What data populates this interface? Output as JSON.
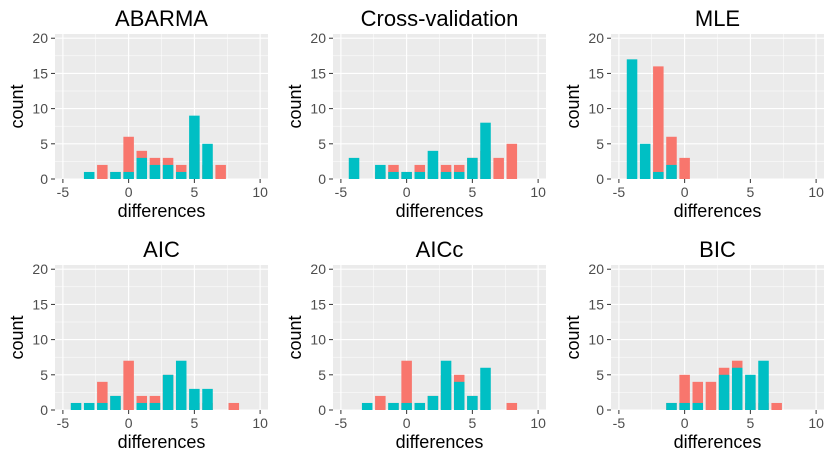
{
  "colors": {
    "red": "#F8766D",
    "teal": "#00BFC4",
    "panel": "#EBEBEB"
  },
  "chart_data": [
    {
      "type": "bar",
      "title": "ABARMA",
      "xlabel": "differences",
      "ylabel": "count",
      "xlim": [
        -5.6,
        10.6
      ],
      "ylim": [
        0,
        20.6
      ],
      "xticks": [
        -5,
        0,
        5,
        10
      ],
      "yticks": [
        0,
        5,
        10,
        15,
        20
      ],
      "grid": true,
      "bar_width": 0.8,
      "series": [
        {
          "color": "red",
          "x": [
            -2,
            -1,
            0,
            1,
            2,
            3,
            4,
            5,
            6,
            7
          ],
          "values": [
            2,
            1,
            6,
            4,
            3,
            3,
            2,
            5,
            2,
            2
          ]
        },
        {
          "color": "teal",
          "x": [
            -3,
            -1,
            0,
            1,
            2,
            3,
            4,
            5,
            6
          ],
          "values": [
            1,
            1,
            1,
            3,
            2,
            2,
            1,
            9,
            5
          ]
        }
      ]
    },
    {
      "type": "bar",
      "title": "Cross-validation",
      "xlabel": "differences",
      "ylabel": "count",
      "xlim": [
        -5.6,
        10.6
      ],
      "ylim": [
        0,
        20.6
      ],
      "xticks": [
        -5,
        0,
        5,
        10
      ],
      "yticks": [
        0,
        5,
        10,
        15,
        20
      ],
      "grid": true,
      "bar_width": 0.8,
      "series": [
        {
          "color": "red",
          "x": [
            -2,
            -1,
            0,
            1,
            2,
            3,
            4,
            5,
            6,
            7,
            8
          ],
          "values": [
            1,
            2,
            1,
            2,
            1,
            2,
            2,
            3,
            4,
            3,
            5
          ]
        },
        {
          "color": "teal",
          "x": [
            -4,
            -2,
            -1,
            0,
            1,
            2,
            3,
            4,
            5,
            6
          ],
          "values": [
            3,
            2,
            1,
            1,
            1,
            4,
            1,
            1,
            3,
            8
          ]
        }
      ]
    },
    {
      "type": "bar",
      "title": "MLE",
      "xlabel": "differences",
      "ylabel": "count",
      "xlim": [
        -5.6,
        10.6
      ],
      "ylim": [
        0,
        20.6
      ],
      "xticks": [
        -5,
        0,
        5,
        10
      ],
      "yticks": [
        0,
        5,
        10,
        15,
        20
      ],
      "grid": true,
      "bar_width": 0.8,
      "series": [
        {
          "color": "red",
          "x": [
            -2,
            -1,
            0
          ],
          "values": [
            16,
            6,
            3
          ]
        },
        {
          "color": "teal",
          "x": [
            -4,
            -3,
            -2,
            -1
          ],
          "values": [
            17,
            5,
            1,
            2
          ]
        }
      ]
    },
    {
      "type": "bar",
      "title": "AIC",
      "xlabel": "differences",
      "ylabel": "count",
      "xlim": [
        -5.6,
        10.6
      ],
      "ylim": [
        0,
        20.6
      ],
      "xticks": [
        -5,
        0,
        5,
        10
      ],
      "yticks": [
        0,
        5,
        10,
        15,
        20
      ],
      "grid": true,
      "bar_width": 0.8,
      "series": [
        {
          "color": "red",
          "x": [
            -2,
            -1,
            0,
            1,
            2,
            3,
            4,
            5,
            6,
            8
          ],
          "values": [
            4,
            2,
            7,
            2,
            2,
            5,
            5,
            1,
            1,
            1
          ]
        },
        {
          "color": "teal",
          "x": [
            -4,
            -3,
            -2,
            -1,
            1,
            2,
            3,
            4,
            5,
            6
          ],
          "values": [
            1,
            1,
            1,
            2,
            1,
            1,
            5,
            7,
            3,
            3
          ]
        }
      ]
    },
    {
      "type": "bar",
      "title": "AICc",
      "xlabel": "differences",
      "ylabel": "count",
      "xlim": [
        -5.6,
        10.6
      ],
      "ylim": [
        0,
        20.6
      ],
      "xticks": [
        -5,
        0,
        5,
        10
      ],
      "yticks": [
        0,
        5,
        10,
        15,
        20
      ],
      "grid": true,
      "bar_width": 0.8,
      "series": [
        {
          "color": "red",
          "x": [
            -2,
            -1,
            0,
            1,
            2,
            3,
            4,
            5,
            8
          ],
          "values": [
            2,
            1,
            7,
            1,
            2,
            5,
            5,
            2,
            1
          ]
        },
        {
          "color": "teal",
          "x": [
            -3,
            -1,
            0,
            1,
            2,
            3,
            4,
            5,
            6
          ],
          "values": [
            1,
            1,
            1,
            1,
            2,
            7,
            4,
            2,
            6
          ]
        }
      ]
    },
    {
      "type": "bar",
      "title": "BIC",
      "xlabel": "differences",
      "ylabel": "count",
      "xlim": [
        -5.6,
        10.6
      ],
      "ylim": [
        0,
        20.6
      ],
      "xticks": [
        -5,
        0,
        5,
        10
      ],
      "yticks": [
        0,
        5,
        10,
        15,
        20
      ],
      "grid": true,
      "bar_width": 0.8,
      "series": [
        {
          "color": "red",
          "x": [
            -1,
            0,
            1,
            2,
            3,
            4,
            5,
            6,
            7
          ],
          "values": [
            1,
            5,
            4,
            4,
            6,
            7,
            1,
            1,
            1
          ]
        },
        {
          "color": "teal",
          "x": [
            -1,
            0,
            1,
            3,
            4,
            5,
            6
          ],
          "values": [
            1,
            1,
            1,
            5,
            6,
            5,
            7
          ]
        }
      ]
    }
  ]
}
